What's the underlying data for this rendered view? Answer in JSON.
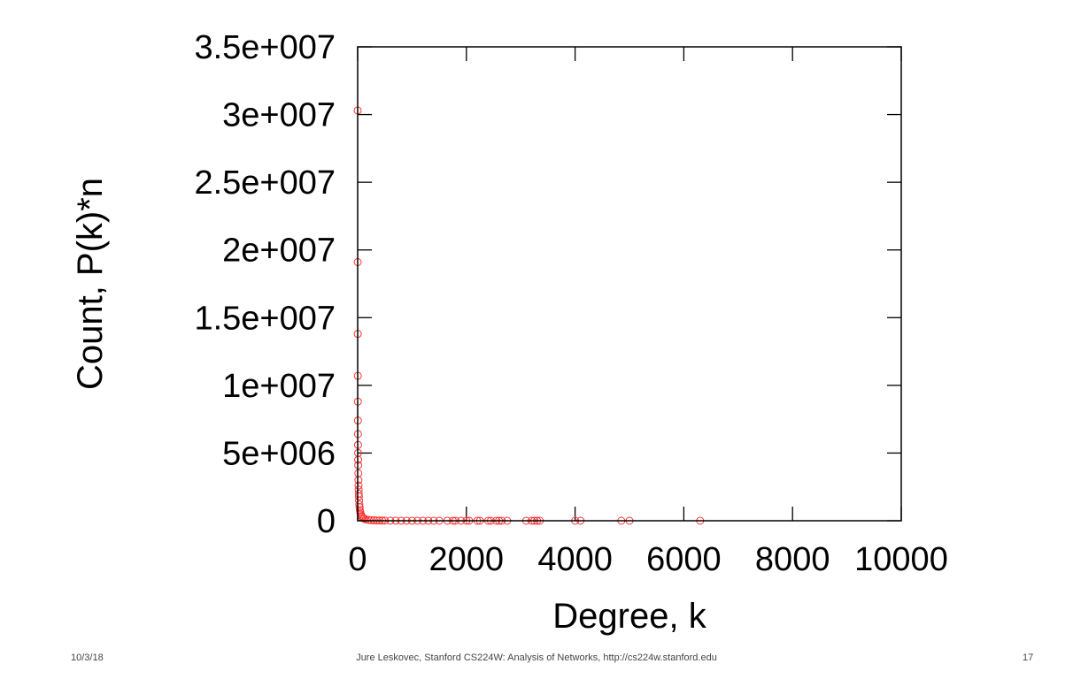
{
  "chart_data": {
    "type": "scatter",
    "title": "",
    "xlabel": "Degree, k",
    "ylabel": "Count, P(k)*n",
    "xlim": [
      0,
      10000
    ],
    "ylim": [
      0,
      35000000
    ],
    "xticks": [
      0,
      2000,
      4000,
      6000,
      8000,
      10000
    ],
    "xtick_labels": [
      "0",
      "2000",
      "4000",
      "6000",
      "8000",
      "10000"
    ],
    "yticks": [
      0,
      5000000,
      10000000,
      15000000,
      20000000,
      25000000,
      30000000,
      35000000
    ],
    "ytick_labels": [
      "0",
      "5e+006",
      "1e+007",
      "1.5e+007",
      "2e+007",
      "2.5e+007",
      "3e+007",
      "3.5e+007"
    ],
    "grid": false,
    "marker_color": "#ff3333",
    "series": [
      {
        "x": [
          0,
          1,
          2,
          3,
          4,
          5,
          6,
          7,
          8,
          9,
          10,
          12,
          14,
          16,
          18,
          20,
          22,
          25,
          30,
          35,
          40,
          50,
          60,
          70,
          80,
          100,
          120,
          150,
          200,
          250,
          300,
          350,
          400,
          450,
          500,
          600,
          700,
          800,
          900,
          1000,
          1100,
          1200,
          1300,
          1400,
          1500,
          1650,
          1750,
          1800,
          1900,
          2000,
          2050,
          2200,
          2250,
          2400,
          2450,
          2550,
          2600,
          2650,
          2750,
          3100,
          3200,
          3250,
          3300,
          3350,
          4000,
          4100,
          4850,
          5000,
          6300
        ],
        "y": [
          30300000,
          19100000,
          13800000,
          10700000,
          8800000,
          7400000,
          6400000,
          5600000,
          5000000,
          4500000,
          4100000,
          3500000,
          3000000,
          2600000,
          2300000,
          2000000,
          1800000,
          1500000,
          1200000,
          1000000,
          800000,
          600000,
          450000,
          350000,
          280000,
          200000,
          150000,
          100000,
          60000,
          40000,
          30000,
          20000,
          15000,
          12000,
          10000,
          7000,
          5000,
          4000,
          3000,
          2500,
          2000,
          1500,
          1200,
          1000,
          900,
          700,
          600,
          550,
          500,
          450,
          420,
          380,
          350,
          300,
          280,
          260,
          250,
          240,
          220,
          180,
          170,
          160,
          150,
          140,
          100,
          90,
          60,
          50,
          20
        ]
      }
    ]
  },
  "footer": {
    "date": "10/3/18",
    "credit": "Jure Leskovec, Stanford CS224W: Analysis of Networks, http://cs224w.stanford.edu",
    "page": "17"
  }
}
